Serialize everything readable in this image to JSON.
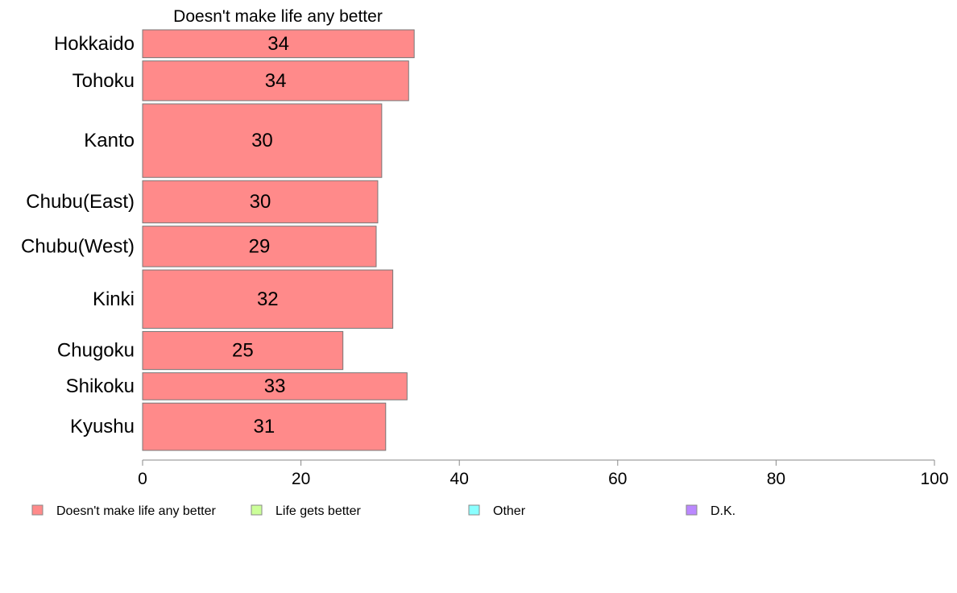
{
  "chart_data": {
    "type": "bar",
    "orientation": "horizontal",
    "title": "",
    "panel_title": "Doesn't make life any better",
    "xlabel": "",
    "ylabel": "",
    "xlim": [
      0,
      100
    ],
    "x_ticks": [
      0,
      20,
      40,
      60,
      80,
      100
    ],
    "grid": false,
    "variable_bar_width": true,
    "categories": [
      "Hokkaido",
      "Tohoku",
      "Kanto",
      "Chubu(East)",
      "Chubu(West)",
      "Kinki",
      "Chugoku",
      "Shikoku",
      "Kyushu"
    ],
    "relative_bar_width": [
      0.033,
      0.047,
      0.087,
      0.05,
      0.048,
      0.069,
      0.045,
      0.032,
      0.056
    ],
    "series": [
      {
        "name": "Doesn't make life any better",
        "color": "#FF8A8A",
        "values": [
          34.3,
          33.6,
          30.2,
          29.7,
          29.5,
          31.6,
          25.3,
          33.4,
          30.7
        ],
        "value_labels": [
          "34",
          "34",
          "30",
          "30",
          "29",
          "32",
          "25",
          "33",
          "31"
        ]
      }
    ],
    "legend": {
      "placement": "bottom",
      "entries": [
        {
          "label": "Doesn't make life any better",
          "color": "#FF8A8A"
        },
        {
          "label": "Life gets better",
          "color": "#CCFF99"
        },
        {
          "label": "Other",
          "color": "#8AFFFF"
        },
        {
          "label": "D.K.",
          "color": "#BB88FF"
        }
      ]
    },
    "colors": {
      "bar_stroke": "#777777",
      "axis": "#888888"
    }
  }
}
